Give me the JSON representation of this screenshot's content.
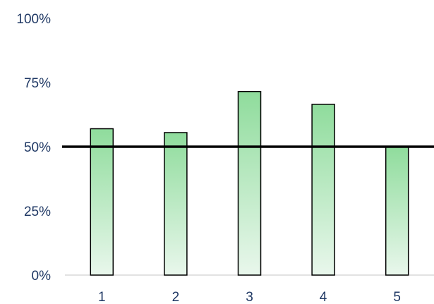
{
  "chart_data": {
    "type": "bar",
    "title": "",
    "xlabel": "",
    "ylabel": "",
    "categories": [
      "1",
      "2",
      "3",
      "4",
      "5"
    ],
    "values": [
      57,
      55.5,
      71.5,
      66.5,
      50
    ],
    "ylim": [
      0,
      100
    ],
    "y_ticks": [
      0,
      25,
      50,
      75,
      100
    ],
    "y_tick_labels": [
      "0%",
      "25%",
      "50%",
      "75%",
      "100%"
    ],
    "reference_line": 50,
    "grid": false,
    "legend": "none",
    "colors": {
      "bar_top": "#8fdc9c",
      "bar_bottom": "#e9f7ec",
      "bar_stroke": "#000000",
      "reference_line": "#000000",
      "axis": "#d9d9d9",
      "tick_text": "#1f3864"
    }
  }
}
